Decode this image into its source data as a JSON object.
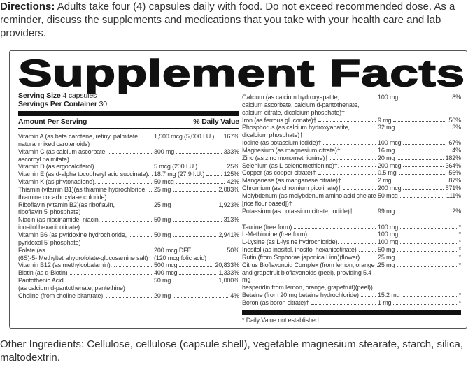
{
  "directions": {
    "label": "Directions:",
    "text": " Adults take four (4) capsules daily with food. Do not exceed recommended dose. As a reminder, discuss the supplements and medications that you take with your health care and lab providers."
  },
  "title": "Supplement Facts",
  "serving_size": {
    "label": "Serving Size",
    "value": "4 capsules"
  },
  "servings_per_container": {
    "label": "Servings Per Container",
    "value": "30"
  },
  "header": {
    "amount": "Amount Per Serving",
    "dv": "% Daily Value"
  },
  "left_rows": [
    {
      "name": [
        "Vitamin A (as beta carotene, retinyl palmitate,",
        "natural mixed carotenoids)"
      ],
      "amount": "1,500 mcg (5,000 I.U.)",
      "dv": "167%"
    },
    {
      "name": [
        "Vitamin C (as calcium ascorbate,",
        "ascorbyl palmitate)"
      ],
      "amount": "300 mg",
      "dv": "333%"
    },
    {
      "name": [
        "Vitamin D (as ergocalciferol)"
      ],
      "amount": "5 mcg (200 I.U.)",
      "dv": "25%"
    },
    {
      "name": [
        "Vitamin E (as d-alpha tocopheryl acid succinate)."
      ],
      "amount": "18.7 mg (27.9 I.U.)",
      "dv": "125%"
    },
    {
      "name": [
        "Vitamin K (as phytonadione)."
      ],
      "amount": "50 mcg",
      "dv": "42%"
    },
    {
      "name": [
        "Thiamin (vitamin B1)(as thiamine hydrochloride,",
        "thiamine cocarboxylase chloride)"
      ],
      "amount": "25 mg",
      "dv": "2,083%"
    },
    {
      "name": [
        "Riboflavin (vitamin B2)(as riboflavin,",
        "riboflavin 5' phosphate)"
      ],
      "amount": "25 mg",
      "dv": "1,923%"
    },
    {
      "name": [
        "Niacin (as niacinamide, niacin,",
        "inositol hexanicotinate)"
      ],
      "amount": "50 mg",
      "dv": "313%"
    },
    {
      "name": [
        "Vitamin B6 (as pyridoxine hydrochloride,",
        "pyridoxal 5' phosphate)"
      ],
      "amount": "50 mg",
      "dv": "2,941%"
    },
    {
      "name": [
        "Folate (as",
        "(6S)-5- Methyltetrahydrofolate-glucosamine salt)"
      ],
      "amount": "200 mcg DFE",
      "dv": "50%",
      "amount_note": "(120 mcg folic acid)"
    },
    {
      "name": [
        "Vitamin B12 (as methylcobalamin)."
      ],
      "amount": "500 mcg",
      "dv": "20,833%"
    },
    {
      "name": [
        "Biotin (as d-Biotin)"
      ],
      "amount": "400 mcg",
      "dv": "1,333%"
    },
    {
      "name": [
        "Pantothenic Acid",
        "(as calcium d-pantothenate, pantethine)"
      ],
      "amount": "50 mg",
      "dv": "1,000%"
    },
    {
      "name": [
        "Choline (from choline bitartrate)."
      ],
      "amount": "20 mg",
      "dv": "4%"
    }
  ],
  "right_rows": [
    {
      "name": [
        "Calcium (as calcium hydroxyapatite,",
        "calcium ascorbate, calcium d-pantothenate,",
        "calcium citrate, dicalcium phosphate)†"
      ],
      "amount": "100 mg",
      "dv": "8%"
    },
    {
      "name": [
        "Iron (as ferrous gluconate)†"
      ],
      "amount": "9 mg",
      "dv": "50%"
    },
    {
      "name": [
        "Phosphorus (as calcium hydroxyapatite,",
        "dicalcium phosphate)†"
      ],
      "amount": "32 mg",
      "dv": "3%"
    },
    {
      "name": [
        "Iodine (as potassium iodide)†"
      ],
      "amount": "100 mcg",
      "dv": "67%"
    },
    {
      "name": [
        "Magnesium (as magnesium citrate)†"
      ],
      "amount": "16 mg",
      "dv": "4%"
    },
    {
      "name": [
        "Zinc (as zinc monomethionine)†"
      ],
      "amount": "20 mg",
      "dv": "182%"
    },
    {
      "name": [
        "Selenium (as L-selenomethionine)†."
      ],
      "amount": "200 mcg",
      "dv": "364%"
    },
    {
      "name": [
        "Copper (as copper citrate)†"
      ],
      "amount": "0.5 mg",
      "dv": "56%"
    },
    {
      "name": [
        "Manganese (as manganese citrate)†."
      ],
      "amount": "2 mg",
      "dv": "87%"
    },
    {
      "name": [
        "Chromium (as chromium picolinate)†"
      ],
      "amount": "200 mcg",
      "dv": "571%"
    },
    {
      "name": [
        "Molybdenum (as molybdenum amino acid chelate",
        "[rice flour based])†"
      ],
      "amount": "50 mcg",
      "dv": "111%"
    },
    {
      "name": [
        "Potassium (as potassium citrate, iodide)†"
      ],
      "amount": "99 mg",
      "dv": "2%"
    }
  ],
  "right_rows_2": [
    {
      "name": [
        "Taurine (free form)"
      ],
      "amount": "100 mg",
      "dv": "*"
    },
    {
      "name": [
        "L-Methionine (free form)"
      ],
      "amount": "100 mg",
      "dv": "*"
    },
    {
      "name": [
        "L-Lysine (as L-lysine hydrochloride)."
      ],
      "amount": "100 mg",
      "dv": "*"
    },
    {
      "name": [
        "Inositol (as inositol, inositol hexanicotinate)"
      ],
      "amount": "50 mg",
      "dv": "*"
    },
    {
      "name": [
        "Rutin (from Sophorae japonica Linn)(flower)"
      ],
      "amount": "25 mg",
      "dv": "*"
    },
    {
      "name": [
        "Citrus Bioflavonoid Complex (from lemon, orange",
        "and grapefruit bioflavonoids (peel), providing 5.4 mg",
        "hesperidin from lemon, orange, grapefruit)(peel))"
      ],
      "amount": "25 mg",
      "dv": "*"
    },
    {
      "name": [
        "Betaine (from 20 mg betaine hydrochloride)"
      ],
      "amount": "15.2 mg",
      "dv": "*"
    },
    {
      "name": [
        "Boron (as boron citrate)†"
      ],
      "amount": "1 mg",
      "dv": "*"
    }
  ],
  "footnote": "* Daily Value not established.",
  "other_ingredients": "Other Ingredients: Cellulose, cellulose (capsule shell),  vegetable magnesium stearate, starch, silica, maltodextrin."
}
